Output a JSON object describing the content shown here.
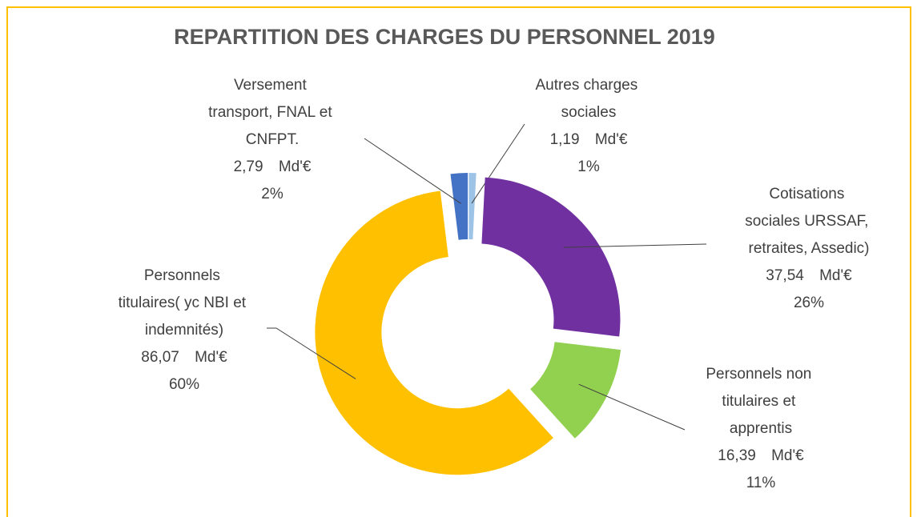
{
  "chart_data": {
    "type": "donut",
    "title": "REPARTITION DES CHARGES DU PERSONNEL 2019",
    "categories": [
      "Autres charges sociales",
      "Cotisations sociales URSSAF, retraites, Assedic)",
      "Personnels non titulaires et apprentis",
      "Personnels titulaires( yc NBI et indemnités)",
      "Versement transport, FNAL et CNFPT."
    ],
    "values": [
      1.19,
      37.54,
      16.39,
      86.07,
      2.79
    ],
    "value_labels": [
      "1,19 Md'€",
      "37,54 Md'€",
      "16,39 Md'€",
      "86,07 Md'€",
      "2,79 Md'€"
    ],
    "percent_labels": [
      "1%",
      "26%",
      "11%",
      "60%",
      "2%"
    ],
    "colors": [
      "#9dc3e6",
      "#7030a0",
      "#92d050",
      "#ffc000",
      "#4472c4"
    ]
  }
}
